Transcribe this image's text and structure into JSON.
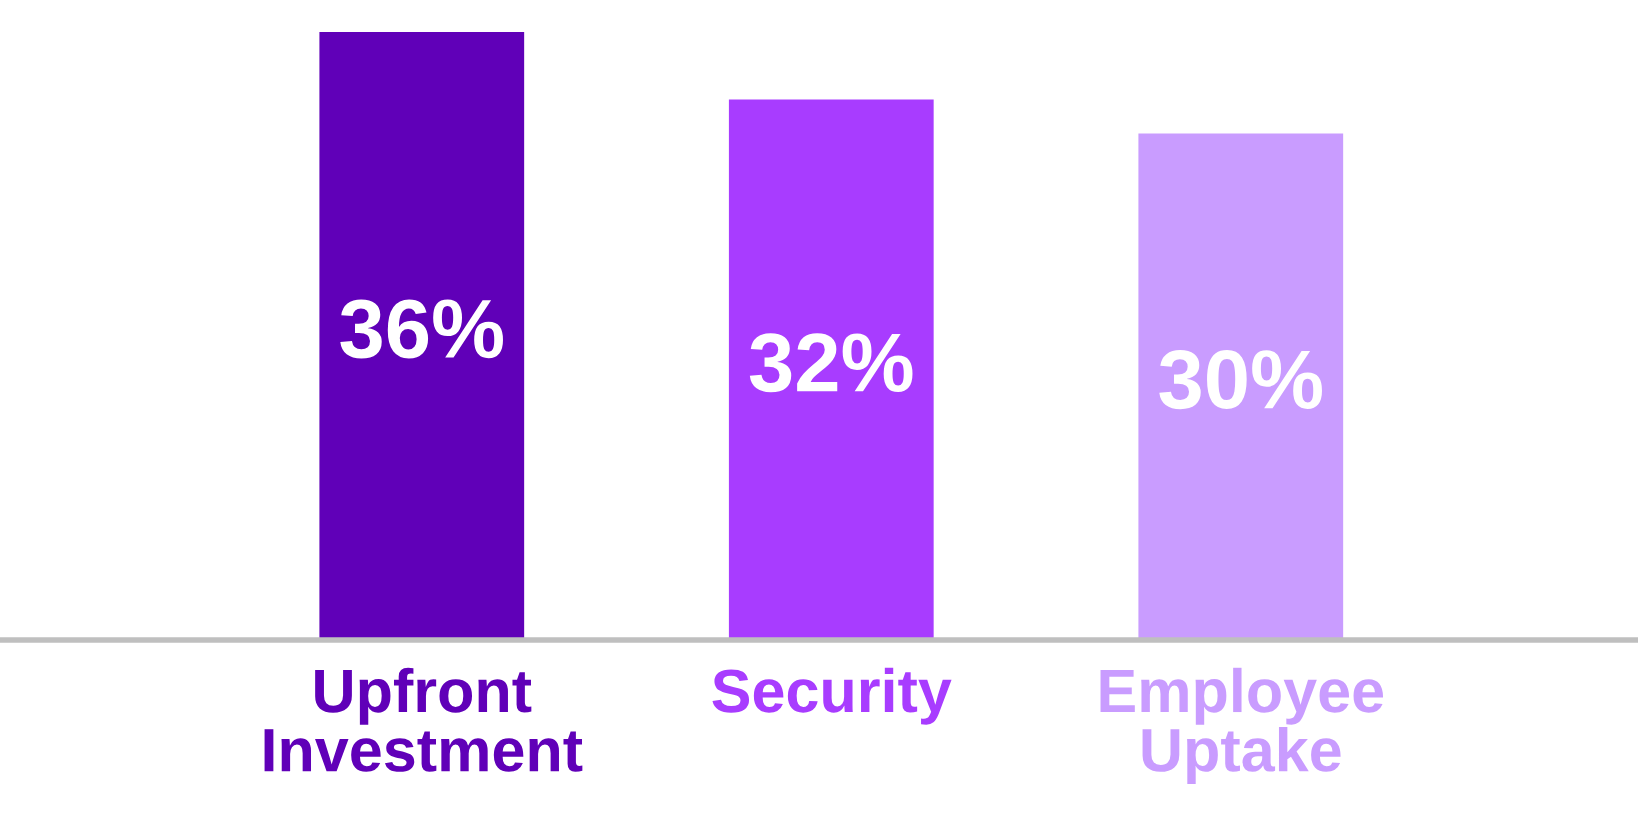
{
  "chart_data": {
    "type": "bar",
    "categories": [
      "Upfront\nInvestment",
      "Security",
      "Employee\nUptake"
    ],
    "values": [
      36,
      32,
      30
    ],
    "colors": [
      "#6000b8",
      "#a83cff",
      "#c99cff"
    ],
    "value_labels": [
      "36%",
      "32%",
      "30%"
    ],
    "tick_labels": "x",
    "grid": false,
    "legend": false
  }
}
